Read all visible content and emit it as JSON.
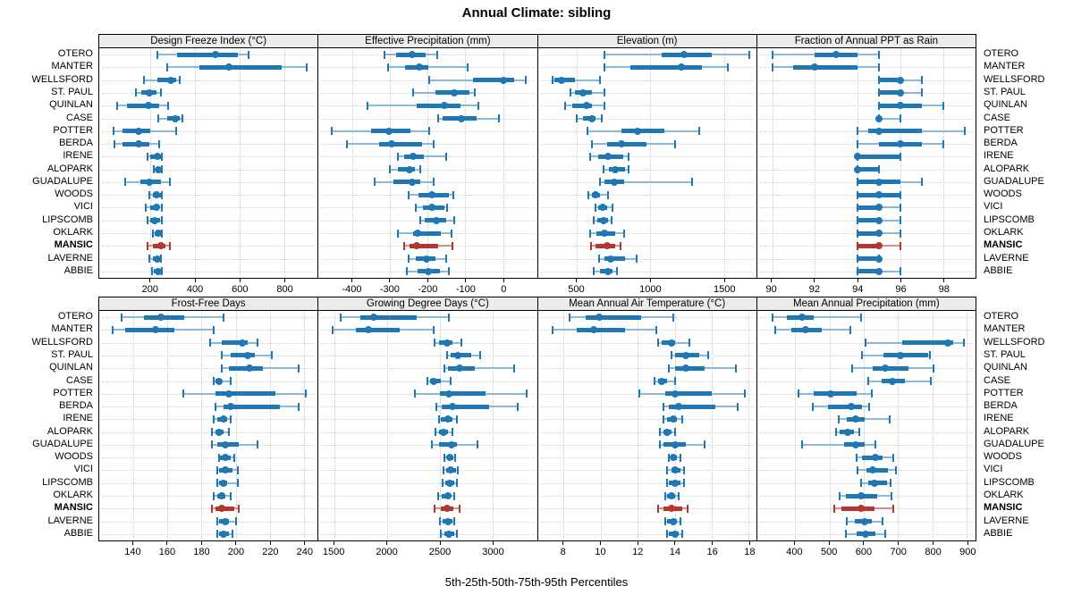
{
  "title": "Annual Climate: sibling",
  "caption": "5th-25th-50th-75th-95th Percentiles",
  "colors": {
    "blue": "#1f77b4",
    "blue_light": "#8ab9da",
    "red": "#b23730",
    "red_light": "#d98f89",
    "grid": "#c9c9c9",
    "strip_bg": "#ececec",
    "border": "#000000"
  },
  "chart_data": {
    "type": "dotplot",
    "layout": "2x4 trellis, percentile whisker dot plot",
    "percentiles": [
      5,
      25,
      50,
      75,
      95
    ],
    "stations": [
      "OTERO",
      "MANTER",
      "WELLSFORD",
      "ST. PAUL",
      "QUINLAN",
      "CASE",
      "POTTER",
      "BERDA",
      "IRENE",
      "ALOPARK",
      "GUADALUPE",
      "WOODS",
      "VICI",
      "LIPSCOMB",
      "OKLARK",
      "MANSIC",
      "LAVERNE",
      "ABBIE"
    ],
    "highlighted_station": "MANSIC",
    "panels": [
      {
        "title": "Design Freeze Index (°C)",
        "ticks": [
          200,
          400,
          600,
          800
        ],
        "xlim": [
          -30,
          950
        ],
        "values": [
          [
            230,
            320,
            490,
            590,
            640
          ],
          [
            275,
            420,
            550,
            790,
            900
          ],
          [
            170,
            230,
            290,
            315,
            330
          ],
          [
            135,
            160,
            195,
            225,
            245
          ],
          [
            50,
            95,
            190,
            240,
            280
          ],
          [
            235,
            275,
            310,
            330,
            345
          ],
          [
            35,
            75,
            145,
            200,
            315
          ],
          [
            40,
            75,
            145,
            195,
            240
          ],
          [
            185,
            200,
            230,
            245,
            252
          ],
          [
            215,
            225,
            235,
            245,
            252
          ],
          [
            85,
            155,
            195,
            245,
            285
          ],
          [
            195,
            210,
            225,
            245,
            252
          ],
          [
            180,
            200,
            225,
            240,
            250
          ],
          [
            185,
            200,
            220,
            242,
            250
          ],
          [
            210,
            220,
            235,
            245,
            252
          ],
          [
            185,
            210,
            245,
            265,
            285
          ],
          [
            195,
            210,
            230,
            240,
            247
          ],
          [
            205,
            215,
            235,
            245,
            250
          ]
        ]
      },
      {
        "title": "Effective Precipitation (mm)",
        "ticks": [
          -400,
          -300,
          -200,
          -100,
          0
        ],
        "xlim": [
          -490,
          90
        ],
        "values": [
          [
            -315,
            -285,
            -242,
            -205,
            -175
          ],
          [
            -305,
            -260,
            -222,
            -198,
            -95
          ],
          [
            -195,
            -80,
            0,
            30,
            60
          ],
          [
            -240,
            -180,
            -130,
            -90,
            -75
          ],
          [
            -360,
            -230,
            -155,
            -113,
            -65
          ],
          [
            -172,
            -160,
            -110,
            -70,
            -10
          ],
          [
            -455,
            -350,
            -303,
            -245,
            -195
          ],
          [
            -415,
            -330,
            -295,
            -215,
            -185
          ],
          [
            -280,
            -263,
            -240,
            -210,
            -150
          ],
          [
            -300,
            -280,
            -248,
            -233,
            -220
          ],
          [
            -340,
            -290,
            -242,
            -220,
            -185
          ],
          [
            -250,
            -225,
            -190,
            -145,
            -133
          ],
          [
            -232,
            -212,
            -190,
            -155,
            -148
          ],
          [
            -220,
            -208,
            -176,
            -152,
            -130
          ],
          [
            -280,
            -240,
            -228,
            -165,
            -137
          ],
          [
            -262,
            -248,
            -230,
            -172,
            -135
          ],
          [
            -250,
            -232,
            -204,
            -180,
            -152
          ],
          [
            -255,
            -228,
            -198,
            -168,
            -144
          ]
        ]
      },
      {
        "title": "Elevation (m)",
        "ticks": [
          500,
          1000,
          1500
        ],
        "xlim": [
          235,
          1720
        ],
        "values": [
          [
            690,
            1080,
            1230,
            1420,
            1670
          ],
          [
            685,
            865,
            1210,
            1350,
            1525
          ],
          [
            335,
            350,
            395,
            490,
            655
          ],
          [
            455,
            490,
            545,
            600,
            685
          ],
          [
            420,
            470,
            565,
            600,
            690
          ],
          [
            500,
            540,
            600,
            627,
            670
          ],
          [
            570,
            805,
            915,
            1095,
            1335
          ],
          [
            600,
            705,
            805,
            975,
            1170
          ],
          [
            590,
            645,
            715,
            818,
            855
          ],
          [
            680,
            720,
            760,
            830,
            850
          ],
          [
            655,
            685,
            755,
            820,
            1285
          ],
          [
            580,
            600,
            625,
            655,
            710
          ],
          [
            625,
            645,
            675,
            705,
            740
          ],
          [
            615,
            640,
            680,
            715,
            735
          ],
          [
            590,
            635,
            685,
            760,
            820
          ],
          [
            595,
            625,
            705,
            760,
            800
          ],
          [
            650,
            690,
            730,
            830,
            905
          ],
          [
            615,
            658,
            710,
            745,
            772
          ]
        ]
      },
      {
        "title": "Fraction of Annual PPT as Rain",
        "ticks": [
          90,
          92,
          94,
          96,
          98
        ],
        "xlim": [
          89.3,
          99.5
        ],
        "values": [
          [
            90,
            92,
            93,
            94,
            95
          ],
          [
            90,
            91,
            92,
            94,
            95
          ],
          [
            95,
            95,
            96,
            96,
            97
          ],
          [
            95,
            95,
            96,
            96,
            97
          ],
          [
            95,
            95,
            96,
            97,
            98
          ],
          [
            95,
            95,
            95,
            95,
            96
          ],
          [
            94,
            94.5,
            95,
            97,
            99
          ],
          [
            94,
            95,
            96,
            97,
            98
          ],
          [
            94,
            94,
            94,
            96,
            96
          ],
          [
            94,
            94,
            94,
            95,
            95
          ],
          [
            94,
            94,
            95,
            96,
            97
          ],
          [
            94,
            94,
            95,
            96,
            96
          ],
          [
            94,
            94,
            95,
            95,
            96
          ],
          [
            94,
            94,
            95,
            95,
            96
          ],
          [
            94,
            94,
            95,
            95,
            96
          ],
          [
            94,
            94,
            95,
            95,
            96
          ],
          [
            94,
            94,
            95,
            95,
            95
          ],
          [
            94,
            94,
            95,
            95,
            96
          ]
        ]
      },
      {
        "title": "Frost-Free Days",
        "ticks": [
          140,
          160,
          180,
          200,
          220,
          240
        ],
        "xlim": [
          120,
          248
        ],
        "values": [
          [
            133,
            146,
            156,
            170,
            193
          ],
          [
            128,
            135,
            153,
            164,
            187
          ],
          [
            185,
            192,
            204,
            207,
            213
          ],
          [
            192,
            197,
            207,
            211,
            221
          ],
          [
            192,
            196,
            208,
            216,
            237
          ],
          [
            187,
            188,
            190,
            192,
            197
          ],
          [
            169,
            188,
            196,
            223,
            241
          ],
          [
            188,
            193,
            197,
            226,
            237
          ],
          [
            187,
            189,
            193,
            195,
            197
          ],
          [
            186,
            188,
            190,
            193,
            196
          ],
          [
            186,
            189,
            194,
            202,
            213
          ],
          [
            190,
            191,
            194,
            197,
            199
          ],
          [
            189,
            190,
            194,
            198,
            201
          ],
          [
            189,
            190,
            193,
            195,
            201
          ],
          [
            187,
            189,
            192,
            194,
            197
          ],
          [
            186,
            188,
            192,
            199,
            202
          ],
          [
            189,
            190,
            194,
            196,
            200
          ],
          [
            189,
            190,
            193,
            196,
            198
          ]
        ]
      },
      {
        "title": "Growing Degree Days (°C)",
        "ticks": [
          1500,
          2000,
          2500,
          3000
        ],
        "xlim": [
          1350,
          3420
        ],
        "values": [
          [
            1560,
            1750,
            1870,
            2280,
            2585
          ],
          [
            1485,
            1700,
            1820,
            2120,
            2440
          ],
          [
            2450,
            2490,
            2565,
            2620,
            2700
          ],
          [
            2565,
            2600,
            2670,
            2800,
            2885
          ],
          [
            2545,
            2580,
            2687,
            2835,
            3205
          ],
          [
            2385,
            2405,
            2445,
            2510,
            2600
          ],
          [
            2260,
            2500,
            2585,
            2935,
            3320
          ],
          [
            2470,
            2520,
            2620,
            2970,
            3240
          ],
          [
            2490,
            2510,
            2575,
            2620,
            2660
          ],
          [
            2460,
            2490,
            2537,
            2580,
            2620
          ],
          [
            2420,
            2490,
            2610,
            2660,
            2860
          ],
          [
            2545,
            2565,
            2595,
            2630,
            2645
          ],
          [
            2537,
            2557,
            2602,
            2650,
            2670
          ],
          [
            2530,
            2550,
            2595,
            2635,
            2660
          ],
          [
            2480,
            2517,
            2574,
            2602,
            2640
          ],
          [
            2450,
            2510,
            2565,
            2630,
            2690
          ],
          [
            2500,
            2525,
            2575,
            2615,
            2640
          ],
          [
            2510,
            2545,
            2585,
            2635,
            2660
          ]
        ]
      },
      {
        "title": "Mean Annual Air Temperature (°C)",
        "ticks": [
          8,
          10,
          12,
          14,
          16,
          18
        ],
        "xlim": [
          6.6,
          18.4
        ],
        "values": [
          [
            8.3,
            9.2,
            9.9,
            12.2,
            13.9
          ],
          [
            7.4,
            8.7,
            9.6,
            11.3,
            13.0
          ],
          [
            13.1,
            13.3,
            13.8,
            14.0,
            14.8
          ],
          [
            13.8,
            14.0,
            14.6,
            15.3,
            15.8
          ],
          [
            13.7,
            14.0,
            14.6,
            15.6,
            17.3
          ],
          [
            12.9,
            13.1,
            13.3,
            13.6,
            14.0
          ],
          [
            12.1,
            13.5,
            14.0,
            16.0,
            17.8
          ],
          [
            13.4,
            13.7,
            14.2,
            16.2,
            17.4
          ],
          [
            13.4,
            13.6,
            13.9,
            14.1,
            14.4
          ],
          [
            13.2,
            13.4,
            13.6,
            13.8,
            14.0
          ],
          [
            13.2,
            13.4,
            14.0,
            14.6,
            15.6
          ],
          [
            13.7,
            13.8,
            13.9,
            14.1,
            14.3
          ],
          [
            13.6,
            13.8,
            14.0,
            14.3,
            14.5
          ],
          [
            13.6,
            13.7,
            14.0,
            14.3,
            14.5
          ],
          [
            13.5,
            13.6,
            13.8,
            14.0,
            14.2
          ],
          [
            13.1,
            13.4,
            13.8,
            14.4,
            14.7
          ],
          [
            13.5,
            13.6,
            13.9,
            14.1,
            14.3
          ],
          [
            13.6,
            13.7,
            14.0,
            14.2,
            14.4
          ]
        ]
      },
      {
        "title": "Mean Annual Precipitation (mm)",
        "ticks": [
          400,
          500,
          600,
          700,
          800,
          900
        ],
        "xlim": [
          290,
          925
        ],
        "values": [
          [
            335,
            377,
            420,
            455,
            593
          ],
          [
            343,
            389,
            432,
            477,
            560
          ],
          [
            606,
            713,
            844,
            860,
            892
          ],
          [
            595,
            657,
            706,
            786,
            792
          ],
          [
            567,
            626,
            663,
            729,
            803
          ],
          [
            614,
            653,
            683,
            720,
            795
          ],
          [
            411,
            454,
            503,
            580,
            623
          ],
          [
            451,
            497,
            563,
            595,
            615
          ],
          [
            526,
            550,
            576,
            603,
            675
          ],
          [
            520,
            531,
            554,
            572,
            586
          ],
          [
            420,
            542,
            576,
            602,
            634
          ],
          [
            580,
            595,
            634,
            655,
            687
          ],
          [
            583,
            609,
            626,
            669,
            694
          ],
          [
            593,
            612,
            632,
            668,
            679
          ],
          [
            529,
            548,
            591,
            638,
            681
          ],
          [
            515,
            535,
            593,
            632,
            686
          ],
          [
            550,
            574,
            603,
            623,
            655
          ],
          [
            548,
            580,
            606,
            634,
            662
          ]
        ]
      }
    ]
  }
}
